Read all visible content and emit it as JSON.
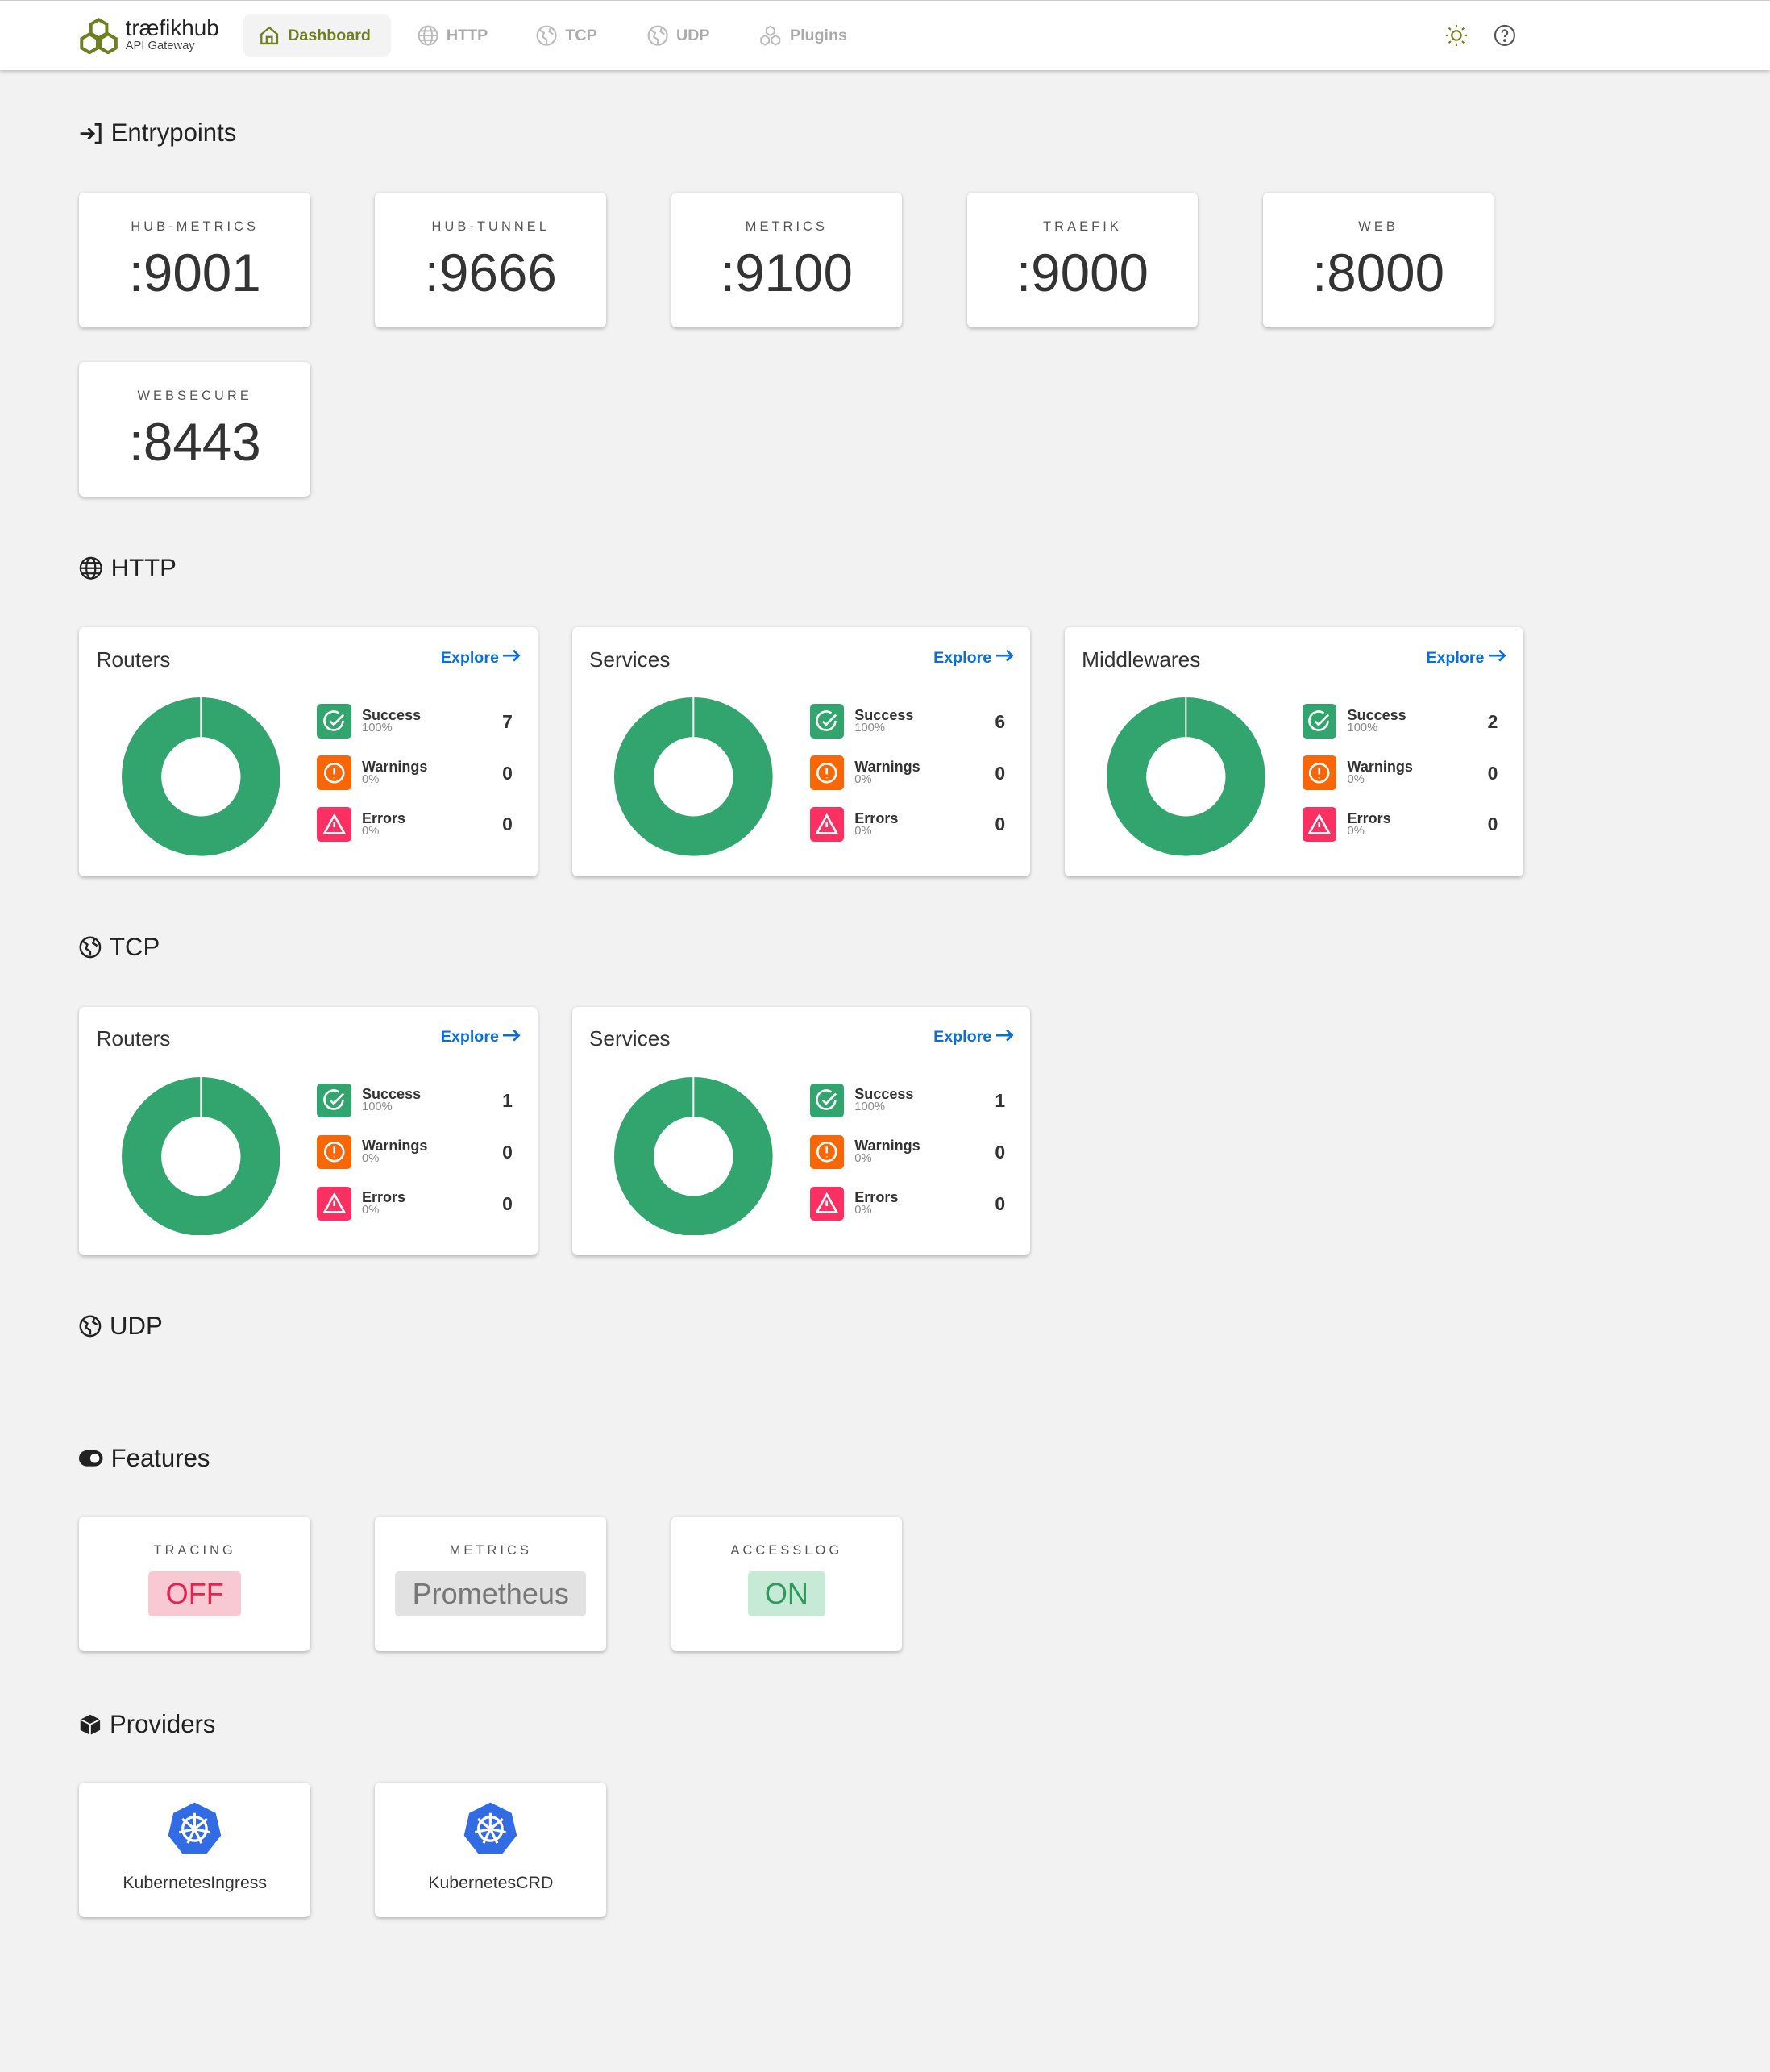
{
  "header": {
    "brand": "træfikhub",
    "subtitle": "API Gateway",
    "nav": [
      {
        "label": "Dashboard",
        "icon": "home-icon",
        "active": true
      },
      {
        "label": "HTTP",
        "icon": "globe-icon"
      },
      {
        "label": "TCP",
        "icon": "world-icon"
      },
      {
        "label": "UDP",
        "icon": "world-icon"
      },
      {
        "label": "Plugins",
        "icon": "cubes-icon"
      }
    ],
    "theme_icon": "sun-icon",
    "help_icon": "help-icon"
  },
  "colors": {
    "accent": "#6f7f1f",
    "success": "#32a56f",
    "warning": "#f76707",
    "error": "#fa2f62",
    "link": "#0a6fdb"
  },
  "entrypoints": {
    "title": "Entrypoints",
    "items": [
      {
        "name": "HUB-METRICS",
        "port": ":9001"
      },
      {
        "name": "HUB-TUNNEL",
        "port": ":9666"
      },
      {
        "name": "METRICS",
        "port": ":9100"
      },
      {
        "name": "TRAEFIK",
        "port": ":9000"
      },
      {
        "name": "WEB",
        "port": ":8000"
      },
      {
        "name": "WEBSECURE",
        "port": ":8443"
      }
    ]
  },
  "http": {
    "title": "HTTP",
    "cards": [
      {
        "title": "Routers",
        "explore": "Explore",
        "success": 7,
        "warnings": 0,
        "errors": 0,
        "success_pct": "100%",
        "warnings_pct": "0%",
        "errors_pct": "0%"
      },
      {
        "title": "Services",
        "explore": "Explore",
        "success": 6,
        "warnings": 0,
        "errors": 0,
        "success_pct": "100%",
        "warnings_pct": "0%",
        "errors_pct": "0%"
      },
      {
        "title": "Middlewares",
        "explore": "Explore",
        "success": 2,
        "warnings": 0,
        "errors": 0,
        "success_pct": "100%",
        "warnings_pct": "0%",
        "errors_pct": "0%"
      }
    ]
  },
  "tcp": {
    "title": "TCP",
    "cards": [
      {
        "title": "Routers",
        "explore": "Explore",
        "success": 1,
        "warnings": 0,
        "errors": 0,
        "success_pct": "100%",
        "warnings_pct": "0%",
        "errors_pct": "0%"
      },
      {
        "title": "Services",
        "explore": "Explore",
        "success": 1,
        "warnings": 0,
        "errors": 0,
        "success_pct": "100%",
        "warnings_pct": "0%",
        "errors_pct": "0%"
      }
    ]
  },
  "udp": {
    "title": "UDP"
  },
  "labels": {
    "success": "Success",
    "warnings": "Warnings",
    "errors": "Errors"
  },
  "features": {
    "title": "Features",
    "items": [
      {
        "name": "TRACING",
        "value": "OFF",
        "bg": "#f8c8d3",
        "fg": "#e6234f"
      },
      {
        "name": "METRICS",
        "value": "Prometheus",
        "bg": "#e2e2e2",
        "fg": "#777777"
      },
      {
        "name": "ACCESSLOG",
        "value": "ON",
        "bg": "#c7ead6",
        "fg": "#2f9a60"
      }
    ]
  },
  "providers": {
    "title": "Providers",
    "items": [
      {
        "name": "KubernetesIngress",
        "icon": "kubernetes-icon"
      },
      {
        "name": "KubernetesCRD",
        "icon": "kubernetes-icon"
      }
    ]
  }
}
